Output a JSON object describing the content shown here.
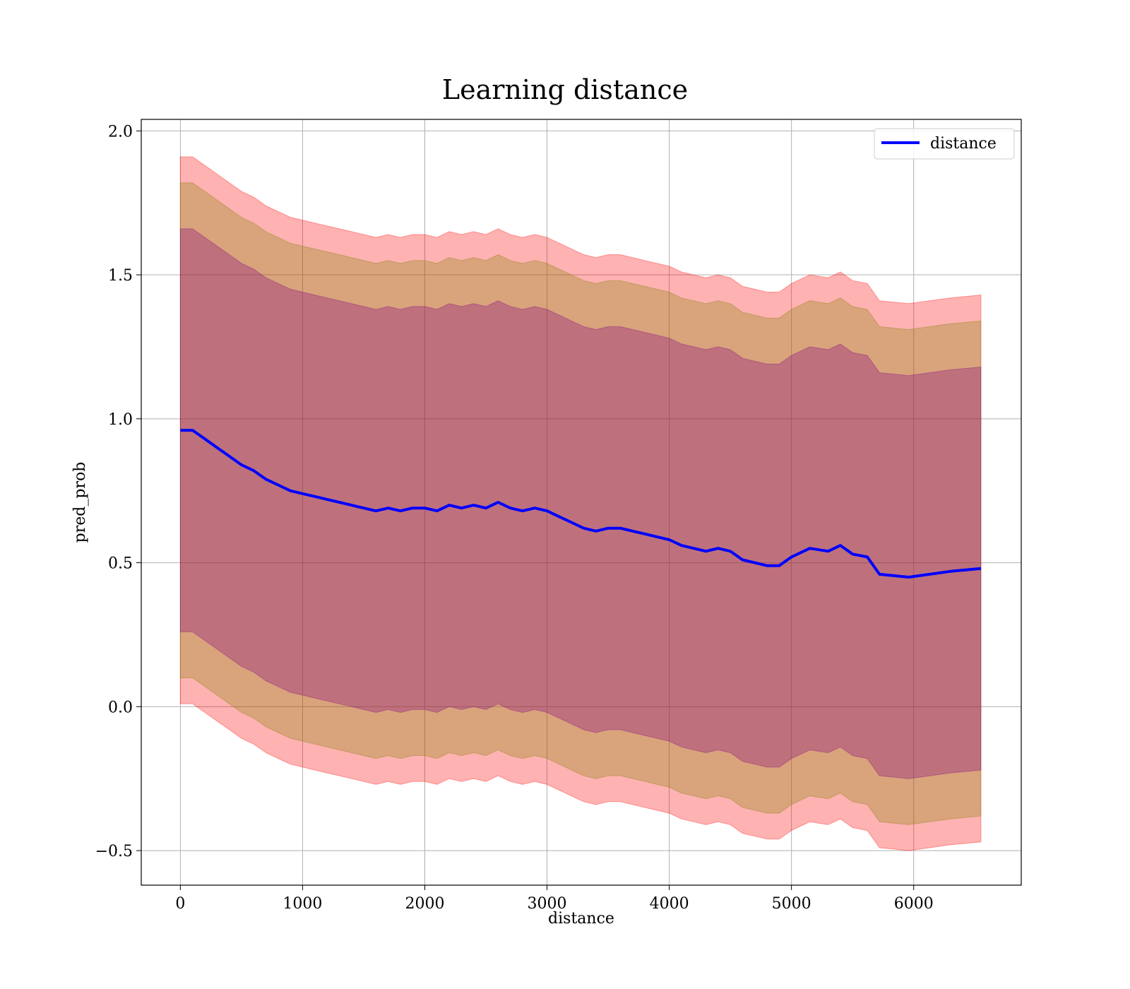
{
  "chart_data": {
    "type": "line",
    "title": "Learning distance",
    "xlabel": "distance",
    "ylabel": "pred_prob",
    "xlim": [
      -320,
      6880
    ],
    "ylim": [
      -0.62,
      2.04
    ],
    "xticks": [
      0,
      1000,
      2000,
      3000,
      4000,
      5000,
      6000
    ],
    "yticks": [
      -0.5,
      0.0,
      0.5,
      1.0,
      1.5,
      2.0
    ],
    "xtick_labels": [
      "0",
      "1000",
      "2000",
      "3000",
      "4000",
      "5000",
      "6000"
    ],
    "ytick_labels": [
      "−0.5",
      "0.0",
      "0.5",
      "1.0",
      "1.5",
      "2.0"
    ],
    "grid": true,
    "legend_position": "top-right",
    "series": [
      {
        "name": "distance",
        "color": "#0000ff",
        "x": [
          0,
          100,
          200,
          300,
          400,
          500,
          600,
          700,
          800,
          900,
          1000,
          1100,
          1200,
          1300,
          1400,
          1500,
          1600,
          1700,
          1800,
          1900,
          2000,
          2100,
          2200,
          2300,
          2400,
          2500,
          2600,
          2700,
          2800,
          2900,
          3000,
          3100,
          3200,
          3300,
          3400,
          3500,
          3600,
          3700,
          3800,
          3900,
          4000,
          4100,
          4200,
          4300,
          4400,
          4500,
          4600,
          4700,
          4800,
          4900,
          5000,
          5150,
          5300,
          5400,
          5500,
          5620,
          5720,
          5960,
          6300,
          6550
        ],
        "values": [
          0.96,
          0.96,
          0.93,
          0.9,
          0.87,
          0.84,
          0.82,
          0.79,
          0.77,
          0.75,
          0.74,
          0.73,
          0.72,
          0.71,
          0.7,
          0.69,
          0.68,
          0.69,
          0.68,
          0.69,
          0.69,
          0.68,
          0.7,
          0.69,
          0.7,
          0.69,
          0.71,
          0.69,
          0.68,
          0.69,
          0.68,
          0.66,
          0.64,
          0.62,
          0.61,
          0.62,
          0.62,
          0.61,
          0.6,
          0.59,
          0.58,
          0.56,
          0.55,
          0.54,
          0.55,
          0.54,
          0.51,
          0.5,
          0.49,
          0.49,
          0.52,
          0.55,
          0.54,
          0.56,
          0.53,
          0.52,
          0.46,
          0.45,
          0.47,
          0.48
        ]
      }
    ],
    "bands": [
      {
        "name": "",
        "color": "#ff0000",
        "opacity": 0.3,
        "halfwidth": 0.95
      },
      {
        "name": "",
        "color": "#808000",
        "opacity": 0.3,
        "halfwidth": 0.86
      },
      {
        "name": "",
        "color": "#800080",
        "opacity": 0.3,
        "halfwidth": 0.7
      }
    ]
  }
}
